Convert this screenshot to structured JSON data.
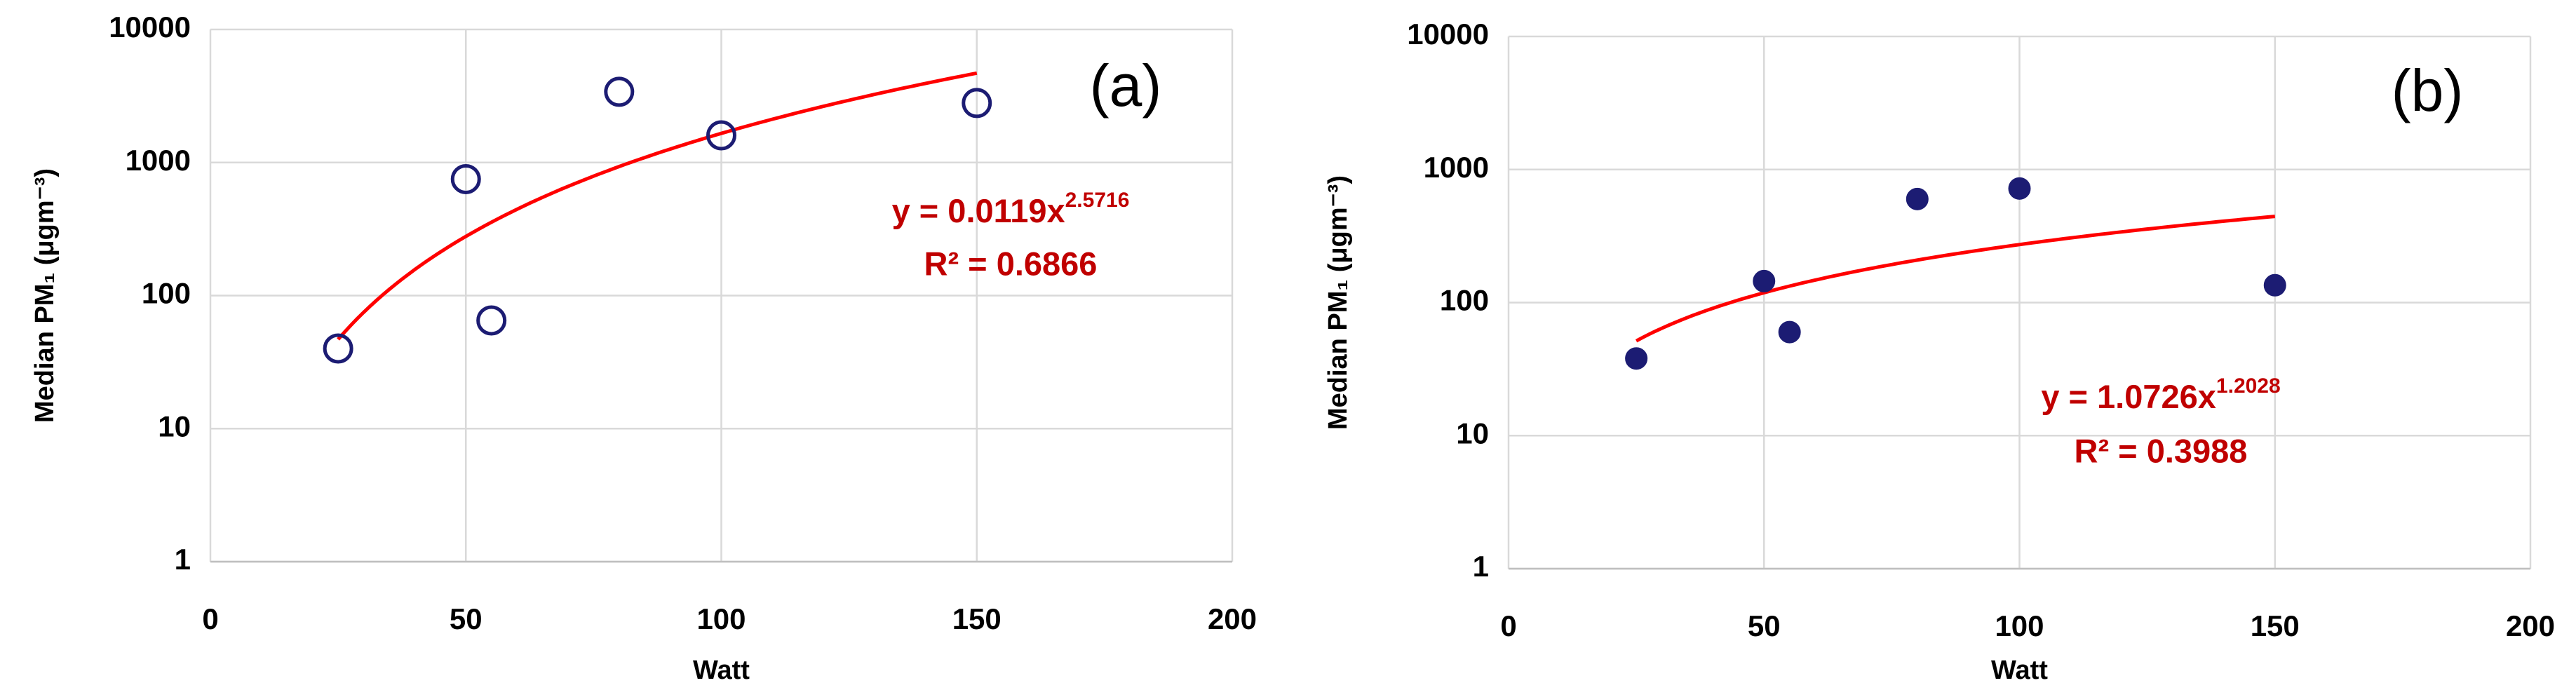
{
  "chart_data": [
    {
      "type": "scatter",
      "title": "(a)",
      "x_label": "Watt",
      "y_label": "Median PM₁ (μgm⁻³)",
      "x": [
        25,
        50,
        55,
        80,
        100,
        150
      ],
      "values": [
        40,
        750,
        65,
        3400,
        1600,
        2800
      ],
      "marker": "open",
      "color": "#1c1c73",
      "xlim": [
        0,
        200
      ],
      "xticks": [
        0,
        50,
        100,
        150,
        200
      ],
      "ylim": [
        1,
        10000
      ],
      "yticks": [
        1,
        10,
        100,
        1000,
        10000
      ],
      "yscale": "log",
      "grid": true,
      "trendline": {
        "type": "power",
        "coefficient": 0.0119,
        "exponent": 2.5716,
        "color": "#ff0000",
        "label": "y = 0.0119x",
        "label_exponent": "2.5716",
        "r2_label": "R² = 0.6866"
      }
    },
    {
      "type": "scatter",
      "title": "(b)",
      "x_label": "Watt",
      "y_label": "Median PM₁ (μgm⁻³)",
      "x": [
        25,
        50,
        55,
        80,
        100,
        150
      ],
      "values": [
        38,
        145,
        60,
        600,
        720,
        135
      ],
      "marker": "filled",
      "color": "#1c1c73",
      "xlim": [
        0,
        200
      ],
      "xticks": [
        0,
        50,
        100,
        150,
        200
      ],
      "ylim": [
        1,
        10000
      ],
      "yticks": [
        1,
        10,
        100,
        1000,
        10000
      ],
      "yscale": "log",
      "grid": true,
      "trendline": {
        "type": "power",
        "coefficient": 1.0726,
        "exponent": 1.2028,
        "color": "#ff0000",
        "label": "y = 1.0726x",
        "label_exponent": "1.2028",
        "r2_label": "R² = 0.3988"
      }
    }
  ]
}
